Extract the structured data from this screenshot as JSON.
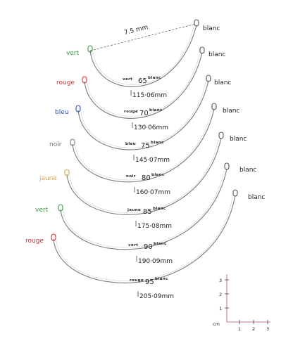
{
  "diagram": {
    "top_dimension": "7.5 mm",
    "wires": [
      {
        "left_color": "vert",
        "left_hex": "#3a9a3a",
        "right_color": "blanc",
        "size_label": "65",
        "color_code": "vert",
        "tag": "blanc",
        "length": "115·06mm",
        "color_name_left": "vert"
      },
      {
        "left_color": "rouge",
        "left_hex": "#d62d2d",
        "right_color": "blanc",
        "size_label": "70",
        "color_code": "rouge",
        "tag": "blanc",
        "length": "130·06mm",
        "color_name_left": "rouge"
      },
      {
        "left_color": "bleu",
        "left_hex": "#2d4fc4",
        "right_color": "blanc",
        "size_label": "75",
        "color_code": "bleu",
        "tag": "blanc",
        "length": "145·07mm",
        "color_name_left": "bleu"
      },
      {
        "left_color": "noir",
        "left_hex": "#777777",
        "right_color": "blanc",
        "size_label": "80",
        "color_code": "noir",
        "tag": "blanc",
        "length": "160·07mm",
        "color_name_left": "noir"
      },
      {
        "left_color": "jaune",
        "left_hex": "#d9a35a",
        "right_color": "blanc",
        "size_label": "85",
        "color_code": "jaune",
        "tag": "blanc",
        "length": "175·08mm",
        "color_name_left": "jaune"
      },
      {
        "left_color": "vert",
        "left_hex": "#3a9a3a",
        "right_color": "blanc",
        "size_label": "90",
        "color_code": "vert",
        "tag": "blanc",
        "length": "190·09mm",
        "color_name_left": "vert"
      },
      {
        "left_color": "rouge",
        "left_hex": "#d62d2d",
        "right_color": "blanc",
        "size_label": "95",
        "color_code": "rouge",
        "tag": "blanc",
        "length": "205·09mm",
        "color_name_left": "rouge"
      }
    ],
    "scale": {
      "y_ticks": [
        "3",
        "2",
        "1"
      ],
      "x_ticks": [
        "1",
        "2",
        "3"
      ],
      "unit": "cm"
    }
  }
}
